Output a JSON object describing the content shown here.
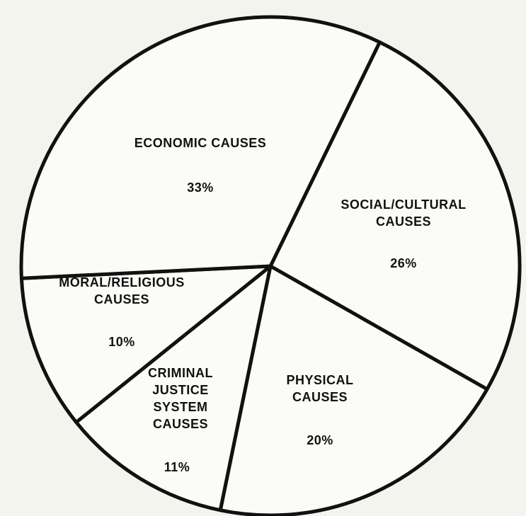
{
  "chart_data": {
    "type": "pie",
    "categories": [
      "SOCIAL/CULTURAL CAUSES",
      "PHYSICAL CAUSES",
      "CRIMINAL JUSTICE SYSTEM CAUSES",
      "MORAL/RELIGIOUS CAUSES",
      "ECONOMIC CAUSES"
    ],
    "values": [
      26,
      20,
      11,
      10,
      33
    ],
    "value_labels": [
      "26%",
      "20%",
      "11%",
      "10%",
      "33%"
    ],
    "color": "#fbfbf7"
  }
}
